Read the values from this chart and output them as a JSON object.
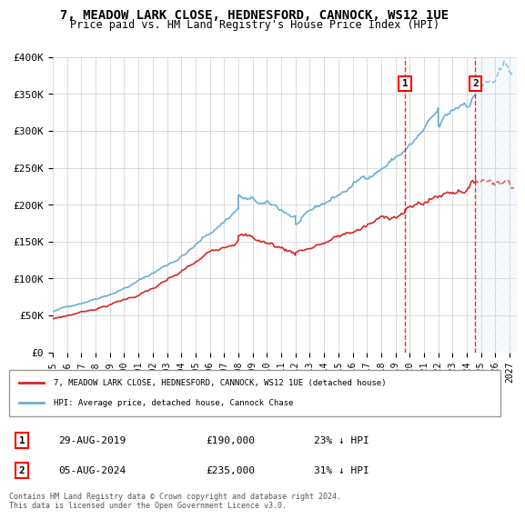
{
  "title": "7, MEADOW LARK CLOSE, HEDNESFORD, CANNOCK, WS12 1UE",
  "subtitle": "Price paid vs. HM Land Registry's House Price Index (HPI)",
  "ylim": [
    0,
    400000
  ],
  "yticks": [
    0,
    50000,
    100000,
    150000,
    200000,
    250000,
    300000,
    350000,
    400000
  ],
  "ytick_labels": [
    "£0",
    "£50K",
    "£100K",
    "£150K",
    "£200K",
    "£250K",
    "£300K",
    "£350K",
    "£400K"
  ],
  "xlim_start": 1995.0,
  "xlim_end": 2027.5,
  "hpi_color": "#6baed6",
  "price_color": "#d62728",
  "transaction1_date": 2019.66,
  "transaction1_price": 190000,
  "transaction2_date": 2024.59,
  "transaction2_price": 235000,
  "legend_line1": "7, MEADOW LARK CLOSE, HEDNESFORD, CANNOCK, WS12 1UE (detached house)",
  "legend_line2": "HPI: Average price, detached house, Cannock Chase",
  "annotation1_date": "29-AUG-2019",
  "annotation1_price": "£190,000",
  "annotation1_hpi": "23% ↓ HPI",
  "annotation2_date": "05-AUG-2024",
  "annotation2_price": "£235,000",
  "annotation2_hpi": "31% ↓ HPI",
  "footer": "Contains HM Land Registry data © Crown copyright and database right 2024.\nThis data is licensed under the Open Government Licence v3.0.",
  "bg_color": "#ffffff",
  "grid_color": "#cccccc",
  "future_hatch_color": "#d0e4f5"
}
